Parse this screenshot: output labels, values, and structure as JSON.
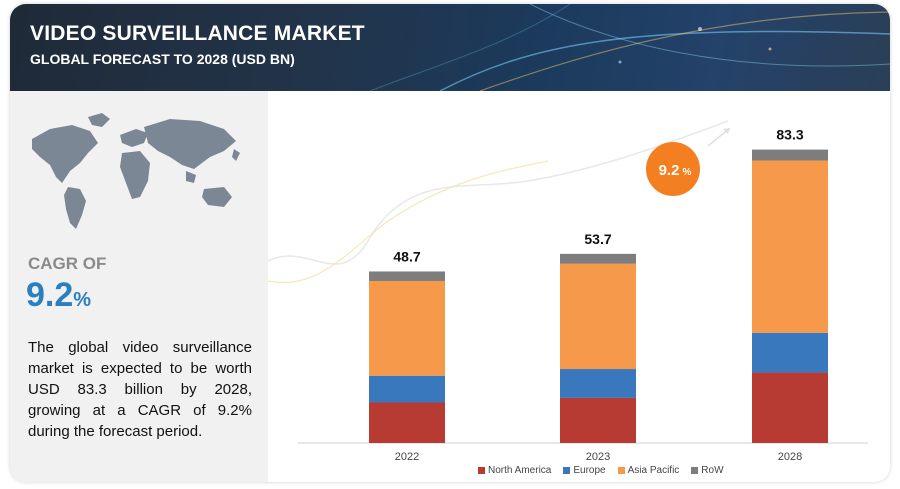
{
  "header": {
    "title": "VIDEO SURVEILLANCE MARKET",
    "subtitle": "GLOBAL FORECAST TO 2028 (USD BN)"
  },
  "side": {
    "cagr_label": "CAGR OF",
    "cagr_value": "9.2",
    "cagr_unit": "%",
    "description": "The global video surveillance market is expected to be worth USD 83.3 billion by 2028, growing at a CAGR of 9.2% during the forecast period."
  },
  "colors": {
    "north_america": "#b83b33",
    "europe": "#3a78bd",
    "asia_pacific": "#f7994a",
    "row": "#7d7d7d",
    "cagr_bubble": "#f47f20",
    "accent_blue": "#2a7fc1"
  },
  "chart_data": {
    "type": "bar",
    "stacked": true,
    "categories": [
      "2022",
      "2023",
      "2028"
    ],
    "totals": [
      48.7,
      53.7,
      83.3
    ],
    "series": [
      {
        "name": "North America",
        "values": [
          11.5,
          12.8,
          20.0
        ]
      },
      {
        "name": "Europe",
        "values": [
          7.6,
          8.2,
          11.3
        ]
      },
      {
        "name": "Asia Pacific",
        "values": [
          26.9,
          29.9,
          48.9
        ]
      },
      {
        "name": "RoW",
        "values": [
          2.7,
          2.8,
          3.1
        ]
      }
    ],
    "cagr_bubble": {
      "value": "9.2",
      "unit": "%"
    },
    "legend_position": "bottom",
    "grid": false,
    "ylim": [
      0,
      90
    ]
  }
}
